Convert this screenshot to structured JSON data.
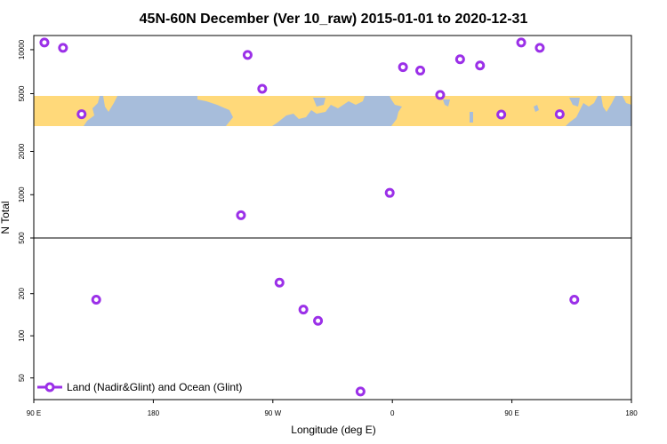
{
  "chart_data": {
    "type": "scatter",
    "title": "45N-60N December (Ver 10_raw)   2015-01-01 to 2020-12-31",
    "xlabel": "Longitude (deg E)",
    "ylabel": "N Total",
    "x_ticks": [
      {
        "value": 90,
        "label": "90 E"
      },
      {
        "value": 180,
        "label": "180"
      },
      {
        "value": 270,
        "label": "90 W"
      },
      {
        "value": 360,
        "label": "0"
      },
      {
        "value": 450,
        "label": "90 E"
      },
      {
        "value": 540,
        "label": "180"
      }
    ],
    "xlim": [
      90,
      540
    ],
    "y_scale": "broken-log",
    "y_segments": [
      {
        "name": "lower",
        "range": [
          35,
          500
        ],
        "ticks": [
          50,
          100,
          200,
          500
        ]
      },
      {
        "name": "middle",
        "range": [
          500,
          3000
        ],
        "ticks": [
          1000,
          2000
        ]
      },
      {
        "name": "upper",
        "range": [
          3000,
          12500
        ],
        "ticks": [
          5000,
          10000
        ]
      }
    ],
    "map_band": {
      "y_range": [
        3000,
        5500
      ],
      "description": "world map strip (land / ocean)"
    },
    "colors": {
      "marker": "#9B30E8",
      "land": "#FFD97A",
      "ocean": "#A7BDDB",
      "axis": "#000000"
    },
    "series": [
      {
        "name": "Land (Nadir&Glint) and Ocean (Glint)",
        "points": [
          {
            "x": 98,
            "y": 11200
          },
          {
            "x": 112,
            "y": 10300
          },
          {
            "x": 126,
            "y": 3620
          },
          {
            "x": 137,
            "y": 181
          },
          {
            "x": 246,
            "y": 720
          },
          {
            "x": 251,
            "y": 9200
          },
          {
            "x": 262,
            "y": 5400
          },
          {
            "x": 275,
            "y": 240
          },
          {
            "x": 293,
            "y": 154
          },
          {
            "x": 304,
            "y": 128
          },
          {
            "x": 336,
            "y": 40
          },
          {
            "x": 358,
            "y": 1030
          },
          {
            "x": 368,
            "y": 7600
          },
          {
            "x": 381,
            "y": 7200
          },
          {
            "x": 396,
            "y": 4900
          },
          {
            "x": 411,
            "y": 8600
          },
          {
            "x": 426,
            "y": 7800
          },
          {
            "x": 442,
            "y": 3600
          },
          {
            "x": 457,
            "y": 11200
          },
          {
            "x": 471,
            "y": 10300
          },
          {
            "x": 486,
            "y": 3620
          },
          {
            "x": 497,
            "y": 181
          }
        ]
      }
    ],
    "legend": {
      "entries": [
        "Land (Nadir&Glint) and Ocean (Glint)"
      ],
      "position": "bottom-left"
    }
  }
}
